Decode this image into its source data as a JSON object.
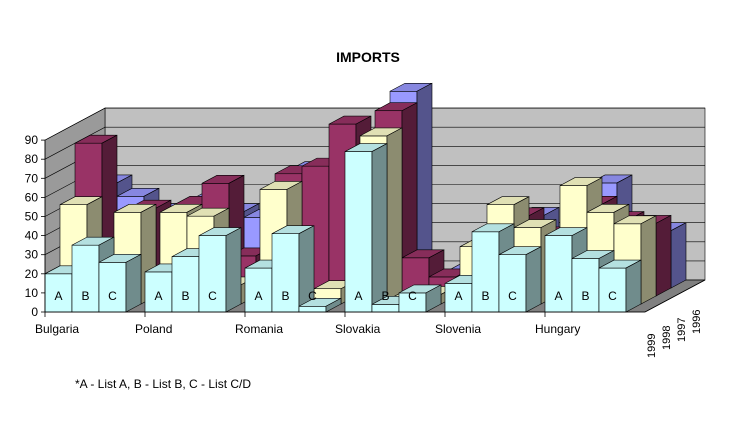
{
  "chart_data": {
    "type": "bar",
    "title": "IMPORTS",
    "footnote": "*A - List A, B - List B, C - List C/D",
    "categories": [
      "Bulgaria",
      "Poland",
      "Romania",
      "Slovakia",
      "Slovenia",
      "Hungary"
    ],
    "sub_bars": [
      "A",
      "B",
      "C"
    ],
    "yticks": [
      0,
      10,
      20,
      30,
      40,
      50,
      60,
      70,
      80,
      90
    ],
    "ylim": [
      0,
      90
    ],
    "grid": true,
    "series": [
      {
        "name": "1999",
        "color": "#ccffff",
        "values": [
          [
            20,
            35,
            26
          ],
          [
            21,
            29,
            40
          ],
          [
            23,
            41,
            3
          ],
          [
            84,
            4,
            10
          ],
          [
            15,
            42,
            30
          ],
          [
            40,
            28,
            23
          ]
        ]
      },
      {
        "name": "1998",
        "color": "#ffffcc",
        "values": [
          [
            52,
            30,
            48
          ],
          [
            48,
            46,
            10
          ],
          [
            60,
            3,
            8
          ],
          [
            88,
            2,
            5
          ],
          [
            30,
            52,
            40
          ],
          [
            62,
            48,
            42
          ]
        ]
      },
      {
        "name": "1997",
        "color": "#993366",
        "values": [
          [
            80,
            26,
            46
          ],
          [
            48,
            59,
            21
          ],
          [
            64,
            68,
            90
          ],
          [
            97,
            20,
            10
          ],
          [
            20,
            42,
            32
          ],
          [
            48,
            40,
            38
          ]
        ]
      },
      {
        "name": "1996",
        "color": "#9999ff",
        "values": [
          [
            55,
            48,
            40
          ],
          [
            46,
            40,
            37
          ],
          [
            62,
            20,
            10
          ],
          [
            103,
            5,
            8
          ],
          [
            12,
            38,
            23
          ],
          [
            55,
            25,
            30
          ]
        ]
      }
    ]
  }
}
